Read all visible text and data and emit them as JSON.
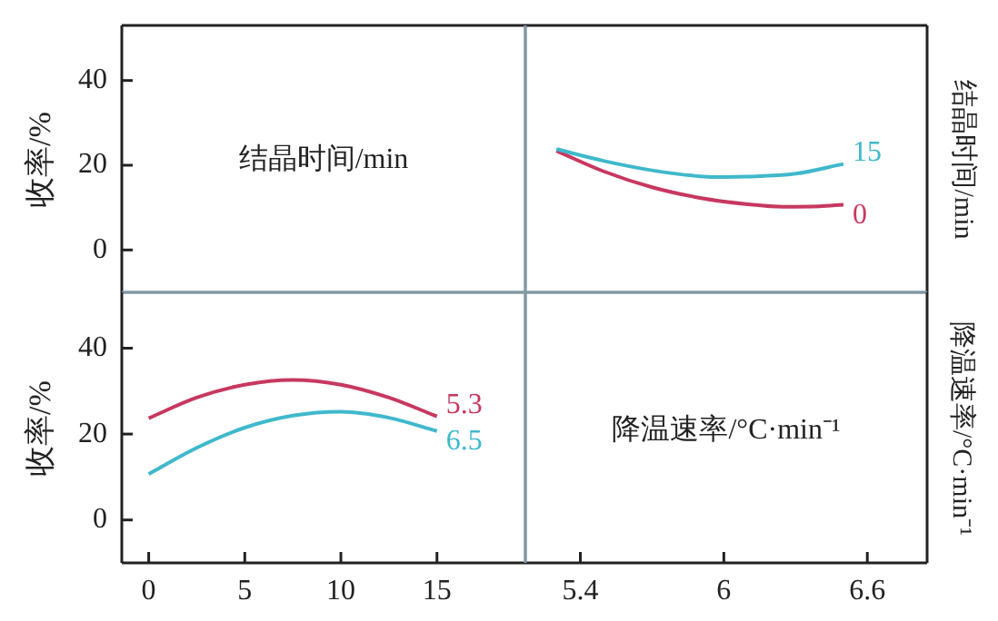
{
  "chart_data": [
    {
      "type": "line",
      "title": "结晶时间/min",
      "ylabel": "收率/%",
      "xlim": [
        -1.4,
        19.6
      ],
      "ylim": [
        -10,
        53
      ],
      "yticks": [
        0,
        20,
        40
      ],
      "tick_labels": "y"
    },
    {
      "type": "line",
      "legend_title": "结晶时间/min",
      "marker": "none",
      "xlim": [
        5.17,
        6.85
      ],
      "xticks": [
        5.4,
        6,
        6.6
      ],
      "ylim": [
        -10,
        53
      ],
      "yticks": [
        0,
        20,
        40
      ],
      "tick_labels": false,
      "series": [
        {
          "name": "15",
          "color": "#40b8cc",
          "x": [
            5.3,
            5.5,
            5.7,
            5.9,
            6.0,
            6.1,
            6.3,
            6.5
          ],
          "values": [
            23.8,
            21,
            18.8,
            17.4,
            17.2,
            17.3,
            18,
            20.3
          ]
        },
        {
          "name": "0",
          "color": "#c73860",
          "x": [
            5.3,
            5.5,
            5.7,
            5.9,
            6.1,
            6.25,
            6.4,
            6.5
          ],
          "values": [
            23.4,
            18.5,
            14.8,
            12.3,
            10.8,
            10.2,
            10.3,
            10.7
          ]
        }
      ]
    },
    {
      "type": "line",
      "legend_title": "降温速率/°C·min⁻¹",
      "ylabel": "收率/%",
      "marker": "none",
      "x": [
        0,
        2.5,
        5,
        7.5,
        10,
        12.5,
        15
      ],
      "xlim": [
        -1.4,
        19.6
      ],
      "xticks": [
        0,
        5,
        10,
        15
      ],
      "ylim": [
        -10,
        53
      ],
      "yticks": [
        0,
        20,
        40
      ],
      "series": [
        {
          "name": "5.3",
          "color": "#c73860",
          "values": [
            23.7,
            28.5,
            31.5,
            32.6,
            31.5,
            28.5,
            24.1
          ]
        },
        {
          "name": "6.5",
          "color": "#40b8cc",
          "values": [
            10.7,
            16.8,
            21.5,
            24.3,
            25.2,
            23.8,
            20.7
          ]
        }
      ]
    },
    {
      "type": "line",
      "title": "降温速率/°C·min⁻¹",
      "xlim": [
        5.17,
        6.85
      ],
      "xticks": [
        5.4,
        6,
        6.6
      ],
      "ylim": [
        -10,
        53
      ],
      "tick_labels": "x"
    }
  ]
}
